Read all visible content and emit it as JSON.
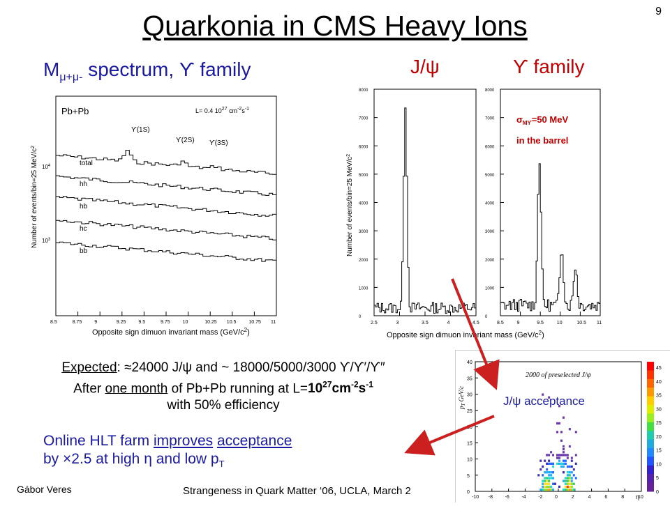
{
  "slide": {
    "number": "9",
    "title": "Quarkonia in CMS Heavy Ions"
  },
  "headers": {
    "left_prefix": "M",
    "left_sub": "μ+μ-",
    "left_rest": " spectrum, ϒ family",
    "jpsi": "J/ψ",
    "upsilon": "ϒ family"
  },
  "left_plot": {
    "system": "Pb+Pb",
    "luminosity": "L= 0.4 10",
    "lumi_exp": "27",
    "lumi_unit": " cm",
    "lumi_unit_exp": "-2",
    "lumi_s": "s",
    "lumi_s_exp": "-1",
    "ylabel": "Number of events/bin=25 MeV/c",
    "ylabel_sup": "2",
    "xlabel": "Opposite sign dimuon invariant mass  (GeV/c",
    "xlabel_sup": "2",
    "xlabel_end": ")",
    "xticks": [
      "8.5",
      "8.75",
      "9",
      "9.25",
      "9.5",
      "9.75",
      "10",
      "10.25",
      "10.5",
      "10.75",
      "11"
    ],
    "yticks": [
      "10",
      "10"
    ],
    "yticks_exp": [
      "4",
      "3"
    ],
    "peaks": [
      "ϒ(1S)",
      "ϒ(2S)",
      "ϒ(3S)"
    ],
    "curves": [
      "total",
      "hh",
      "hb",
      "hc",
      "bb"
    ]
  },
  "right_plot": {
    "ylabel": "Number of events/bin=25 MeV/c",
    "ylabel_sup": "2",
    "xlabel": "Opposite sign dimuon invariant mass  (GeV/c",
    "xlabel_sup": "2",
    "xlabel_end": ")",
    "jpsi_yticks": [
      "0",
      "1000",
      "2000",
      "3000",
      "4000",
      "5000",
      "6000",
      "7000",
      "8000"
    ],
    "jpsi_xticks": [
      "2.5",
      "3",
      "3.5",
      "4",
      "4.5"
    ],
    "ups_yticks": [
      "0",
      "1000",
      "2000",
      "3000",
      "4000",
      "5000",
      "6000",
      "7000",
      "8000"
    ],
    "ups_xticks": [
      "8.5",
      "9",
      "9.5",
      "10",
      "10.5",
      "11"
    ],
    "resolution": "σ",
    "resolution_sub": "Mϒ",
    "resolution_rest": "=50 MeV",
    "resolution_loc": "in the barrel"
  },
  "expected": {
    "label": "Expected",
    "text1": ": ≈24000 J/ψ and ~ 18000/5000/3000  ϒ/ϒ′/ϒ″",
    "line2_a": "After ",
    "line2_u": "one month",
    "line2_b": " of Pb+Pb running at L=",
    "line2_bold": "10",
    "line2_bold_exp": "27",
    "line2_unit": "cm",
    "line2_unit_exp": "-2",
    "line2_s": "s",
    "line2_s_exp": "-1",
    "line3": "with 50% efficiency"
  },
  "hlt": {
    "a": "Online HLT farm ",
    "u1": "improves",
    "b": " ",
    "u2": "acceptance",
    "line2_a": "by ×2.5 at high η and low p",
    "line2_sub": "T"
  },
  "acceptance": {
    "title": "2000 of preselected J/ψ",
    "label": "J/ψ acceptance",
    "ylabel": "p",
    "ylabel_sub": "T",
    "ylabel_unit": " GeV/c",
    "xlabel": "η",
    "yticks": [
      "0",
      "5",
      "10",
      "15",
      "20",
      "25",
      "30",
      "35",
      "40"
    ],
    "xticks": [
      "-10",
      "-8",
      "-6",
      "-4",
      "-2",
      "0",
      "2",
      "4",
      "6",
      "8",
      "10"
    ],
    "zticks": [
      "0",
      "5",
      "10",
      "15",
      "20",
      "25",
      "30",
      "35",
      "40",
      "45"
    ]
  },
  "footer": {
    "author": "Gábor Veres",
    "conference": "Strangeness in Quark Matter ‘06, UCLA, March 2"
  },
  "colors": {
    "title": "#000000",
    "blue_text": "#1a1aa0",
    "red_text": "#c00000",
    "arrow": "#cc2020"
  }
}
